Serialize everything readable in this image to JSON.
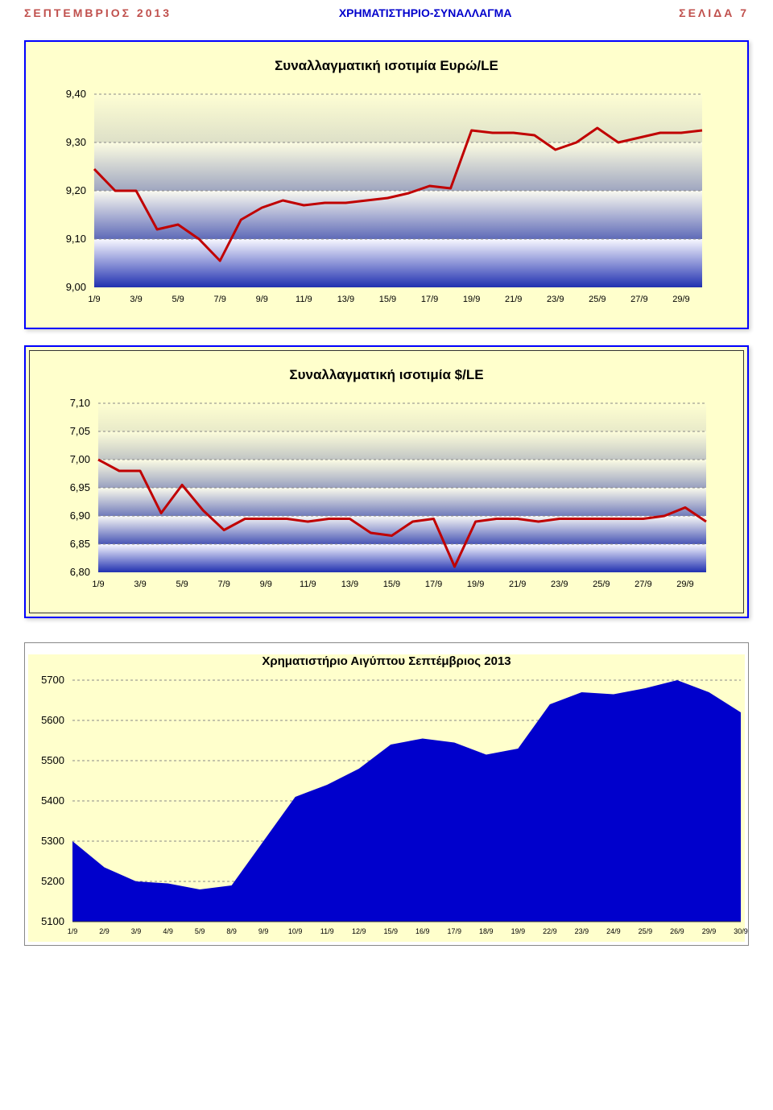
{
  "header": {
    "left": "ΣΕΠΤΕΜΒΡΙΟΣ 2013",
    "center": "ΧΡΗΜΑΤΙΣΤΗΡΙΟ-ΣΥΝΑΛΛΑΓΜΑ",
    "right": "ΣΕΛΙΔΑ 7"
  },
  "chart1": {
    "type": "line",
    "title": "Συναλλαγματική ισοτιμία Ευρώ/LE",
    "xcats": [
      "1/9",
      "3/9",
      "5/9",
      "7/9",
      "9/9",
      "11/9",
      "13/9",
      "15/9",
      "17/9",
      "19/9",
      "21/9",
      "23/9",
      "25/9",
      "27/9",
      "29/9"
    ],
    "yticks": [
      "9,00",
      "9,10",
      "9,20",
      "9,30",
      "9,40"
    ],
    "ymin": 9.0,
    "ymax": 9.4,
    "data_x": [
      "1/9",
      "2/9",
      "3/9",
      "4/9",
      "5/9",
      "6/9",
      "7/9",
      "8/9",
      "9/9",
      "10/9",
      "11/9",
      "12/9",
      "13/9",
      "14/9",
      "15/9",
      "16/9",
      "17/9",
      "18/9",
      "19/9",
      "20/9",
      "21/9",
      "22/9",
      "23/9",
      "24/9",
      "25/9",
      "26/9",
      "27/9",
      "28/9",
      "29/9",
      "30/9"
    ],
    "values": [
      9.245,
      9.2,
      9.2,
      9.12,
      9.13,
      9.1,
      9.055,
      9.14,
      9.165,
      9.18,
      9.17,
      9.175,
      9.175,
      9.18,
      9.185,
      9.195,
      9.21,
      9.205,
      9.325,
      9.32,
      9.32,
      9.315,
      9.285,
      9.3,
      9.33,
      9.3,
      9.31,
      9.32,
      9.32,
      9.325
    ],
    "line_color": "#c00000",
    "line_width": 3,
    "grid_color": "#888888",
    "background_color": "#ffffcc",
    "plot_gradient_top": "#f8f8ff",
    "plot_gradient_bottom": "#2030b0",
    "title_fontsize": 17,
    "label_fontsize": 13
  },
  "chart2": {
    "type": "line",
    "title": "Συναλλαγματική ισοτιμία $/LE",
    "xcats": [
      "1/9",
      "3/9",
      "5/9",
      "7/9",
      "9/9",
      "11/9",
      "13/9",
      "15/9",
      "17/9",
      "19/9",
      "21/9",
      "23/9",
      "25/9",
      "27/9",
      "29/9"
    ],
    "yticks": [
      "6,80",
      "6,85",
      "6,90",
      "6,95",
      "7,00",
      "7,05",
      "7,10"
    ],
    "ymin": 6.8,
    "ymax": 7.1,
    "data_x": [
      "1/9",
      "2/9",
      "3/9",
      "4/9",
      "5/9",
      "6/9",
      "7/9",
      "8/9",
      "9/9",
      "10/9",
      "11/9",
      "12/9",
      "13/9",
      "14/9",
      "15/9",
      "16/9",
      "17/9",
      "18/9",
      "19/9",
      "20/9",
      "21/9",
      "22/9",
      "23/9",
      "24/9",
      "25/9",
      "26/9",
      "27/9",
      "28/9",
      "29/9",
      "30/9"
    ],
    "values": [
      7.0,
      6.98,
      6.98,
      6.905,
      6.955,
      6.91,
      6.875,
      6.895,
      6.895,
      6.895,
      6.89,
      6.895,
      6.895,
      6.87,
      6.865,
      6.89,
      6.895,
      6.81,
      6.89,
      6.895,
      6.895,
      6.89,
      6.895,
      6.895,
      6.895,
      6.895,
      6.895,
      6.9,
      6.915,
      6.89
    ],
    "line_color": "#c00000",
    "line_width": 3,
    "grid_color": "#888888",
    "background_color": "#ffffcc",
    "plot_gradient_top": "#f8f8ff",
    "plot_gradient_bottom": "#2030b0",
    "title_fontsize": 17,
    "label_fontsize": 13
  },
  "chart3": {
    "type": "area",
    "title": "Χρηματιστήριο Αιγύπτου Σεπτέμβριος 2013",
    "xcats": [
      "1/9",
      "2/9",
      "3/9",
      "4/9",
      "5/9",
      "8/9",
      "9/9",
      "10/9",
      "11/9",
      "12/9",
      "15/9",
      "16/9",
      "17/9",
      "18/9",
      "19/9",
      "22/9",
      "23/9",
      "24/9",
      "25/9",
      "26/9",
      "29/9",
      "30/9"
    ],
    "yticks": [
      "5100",
      "5200",
      "5300",
      "5400",
      "5500",
      "5600",
      "5700"
    ],
    "ymin": 5100,
    "ymax": 5700,
    "values": [
      5300,
      5235,
      5200,
      5195,
      5180,
      5190,
      5300,
      5410,
      5440,
      5480,
      5540,
      5555,
      5545,
      5515,
      5530,
      5640,
      5670,
      5665,
      5680,
      5700,
      5670,
      5620
    ],
    "fill_color": "#0000cc",
    "grid_color": "#999999",
    "background_color": "#ffffcc",
    "title_fontsize": 15,
    "label_fontsize": 12
  }
}
